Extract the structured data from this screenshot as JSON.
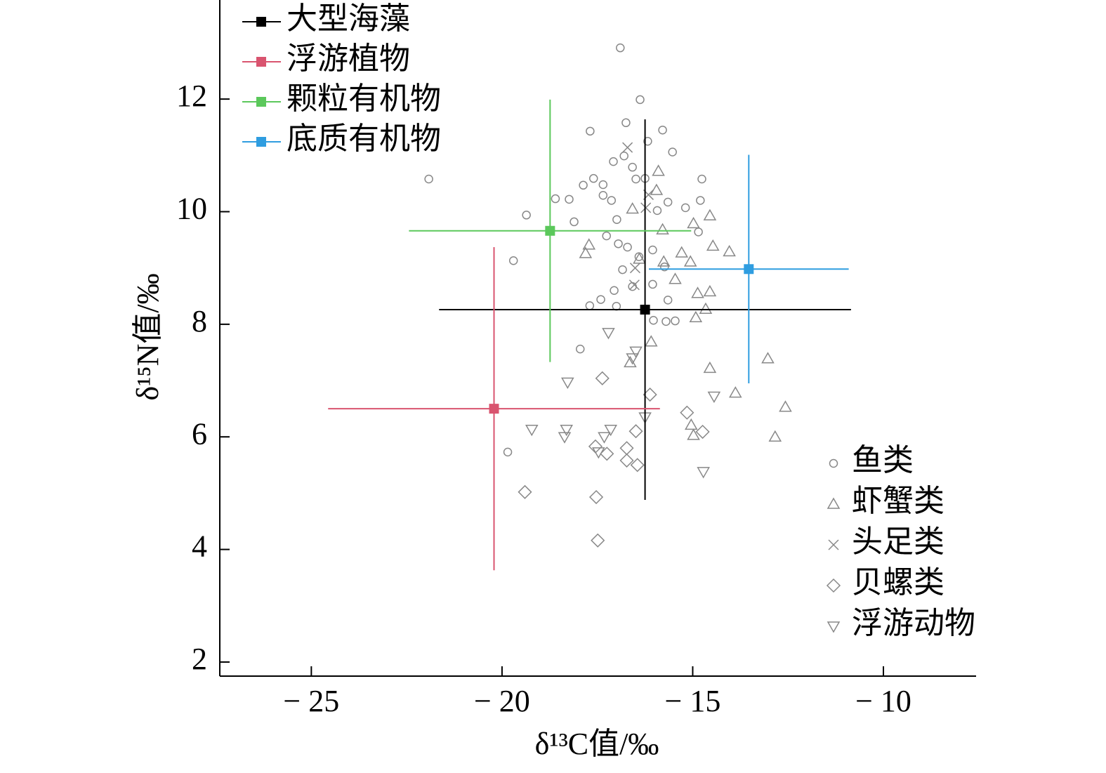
{
  "chart_data": {
    "type": "scatter",
    "xlabel": "δ¹³C值/‰",
    "ylabel": "δ¹⁵N值/‰",
    "xlim": [
      -27.4,
      -7.57
    ],
    "ylim": [
      1.75,
      13.76
    ],
    "xticks": [
      {
        "value": -25,
        "label": "− 25"
      },
      {
        "value": -20,
        "label": "− 20"
      },
      {
        "value": -15,
        "label": "− 15"
      },
      {
        "value": -10,
        "label": "− 10"
      }
    ],
    "yticks": [
      2,
      4,
      6,
      8,
      10,
      12
    ],
    "sources": [
      {
        "name": "大型海藻",
        "color": "#000000",
        "x": -16.25,
        "y": 8.26,
        "xerr": 5.4,
        "yerr": 3.38
      },
      {
        "name": "浮游植物",
        "color": "#d9546f",
        "x": -20.21,
        "y": 6.5,
        "xerr": 4.35,
        "yerr": 2.87
      },
      {
        "name": "颗粒有机物",
        "color": "#5bc85b",
        "x": -18.74,
        "y": 9.66,
        "xerr": 3.7,
        "yerr": 2.33
      },
      {
        "name": "底质有机物",
        "color": "#2f9de0",
        "x": -13.53,
        "y": 8.98,
        "xerr": 2.62,
        "yerr": 2.03
      }
    ],
    "series": [
      {
        "name": "鱼类",
        "marker": "circle",
        "color": "#888888",
        "x": [
          -16.9,
          -16.38,
          -21.92,
          -17.69,
          -16.75,
          -15.79,
          -16.18,
          -15.53,
          -14.76,
          -14.8,
          -19.36,
          -19.7,
          -19.85,
          -17.95,
          -17.7,
          -17.41,
          -17.06,
          -17.0,
          -18.6,
          -18.24,
          -17.87,
          -17.6,
          -17.35,
          -17.08,
          -16.8,
          -16.58,
          -16.49,
          -16.25,
          -15.93,
          -15.65,
          -15.19,
          -14.85,
          -16.99,
          -16.71,
          -16.41,
          -16.05,
          -15.74,
          -16.05,
          -15.65,
          -16.03,
          -15.7,
          -15.46,
          -18.11,
          -17.26,
          -16.84,
          -16.58,
          -16.95,
          -17.35,
          -17.13
        ],
        "y": [
          12.91,
          11.99,
          10.58,
          11.43,
          11.58,
          11.45,
          11.25,
          11.06,
          10.58,
          10.2,
          9.94,
          9.13,
          5.73,
          7.56,
          8.33,
          8.44,
          8.6,
          8.32,
          10.23,
          10.22,
          10.47,
          10.59,
          10.48,
          10.89,
          10.99,
          10.79,
          10.58,
          10.59,
          10.02,
          10.17,
          10.07,
          9.64,
          9.86,
          9.37,
          9.2,
          9.32,
          9.02,
          8.71,
          8.43,
          8.07,
          8.05,
          8.06,
          9.82,
          9.57,
          8.97,
          8.67,
          9.43,
          10.29,
          10.2
        ]
      },
      {
        "name": "虾蟹类",
        "marker": "triangle",
        "color": "#888888",
        "x": [
          -15.9,
          -15.95,
          -16.58,
          -14.55,
          -15.79,
          -14.98,
          -14.47,
          -14.04,
          -15.29,
          -15.06,
          -15.76,
          -16.4,
          -15.46,
          -14.55,
          -14.87,
          -14.66,
          -14.92,
          -16.09,
          -16.64,
          -14.55,
          -13.03,
          -12.57,
          -13.88,
          -12.84,
          -14.98,
          -15.04,
          -17.72,
          -17.81
        ],
        "y": [
          10.72,
          10.38,
          10.05,
          9.93,
          9.68,
          9.79,
          9.39,
          9.29,
          9.27,
          9.11,
          9.11,
          9.16,
          8.8,
          8.58,
          8.55,
          8.27,
          8.12,
          7.69,
          7.32,
          7.22,
          7.39,
          6.53,
          6.78,
          6.0,
          6.03,
          6.21,
          9.41,
          9.26
        ]
      },
      {
        "name": "头足类",
        "marker": "cross",
        "color": "#888888",
        "x": [
          -16.71,
          -16.51,
          -16.23,
          -16.53,
          -16.16
        ],
        "y": [
          11.14,
          9.0,
          10.07,
          8.7,
          10.3
        ]
      },
      {
        "name": "贝螺类",
        "marker": "diamond",
        "color": "#888888",
        "x": [
          -19.4,
          -17.53,
          -17.49,
          -17.37,
          -16.12,
          -15.15,
          -14.74,
          -16.49,
          -16.73,
          -16.73,
          -16.45,
          -17.55,
          -17.25
        ],
        "y": [
          5.02,
          4.93,
          4.16,
          7.04,
          6.75,
          6.43,
          6.09,
          6.1,
          5.8,
          5.58,
          5.5,
          5.83,
          5.7
        ]
      },
      {
        "name": "浮游动物",
        "marker": "triangle-down",
        "color": "#888888",
        "x": [
          -17.21,
          -16.49,
          -16.58,
          -18.28,
          -19.22,
          -18.31,
          -18.36,
          -17.15,
          -17.32,
          -17.47,
          -16.25,
          -14.44,
          -14.72
        ],
        "y": [
          7.85,
          7.52,
          7.4,
          6.97,
          6.13,
          6.13,
          6.0,
          6.13,
          6.0,
          5.73,
          6.35,
          6.72,
          5.38
        ]
      }
    ]
  }
}
